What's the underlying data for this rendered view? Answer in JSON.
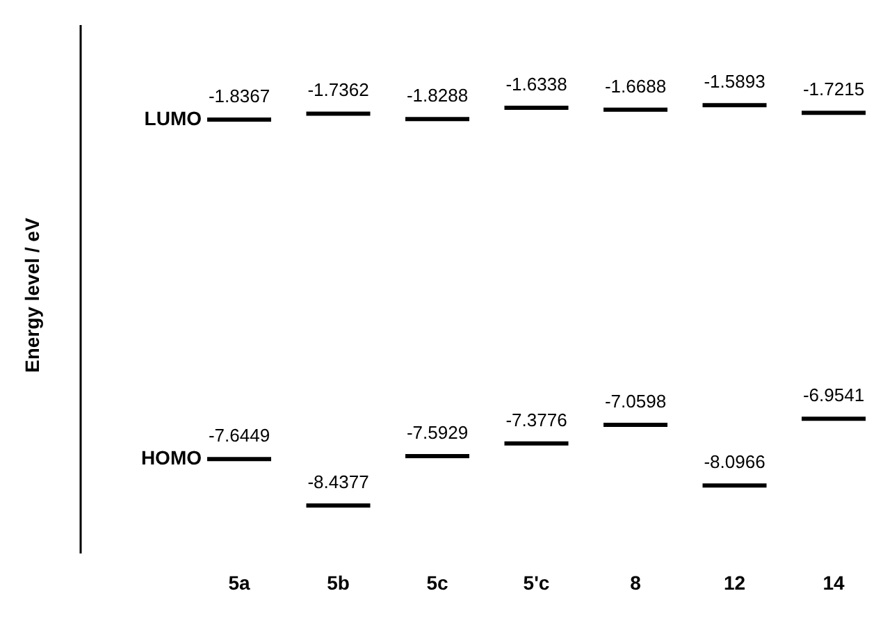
{
  "chart_data": {
    "type": "other",
    "ylabel": "Energy level  /  eV",
    "categories": [
      "5a",
      "5b",
      "5c",
      "5'c",
      "8",
      "12",
      "14"
    ],
    "series": [
      {
        "name": "LUMO",
        "color": "#000000",
        "values": [
          -1.8367,
          -1.7362,
          -1.8288,
          -1.6338,
          -1.6688,
          -1.5893,
          -1.7215
        ]
      },
      {
        "name": "HOMO",
        "color": "#000000",
        "values": [
          -7.6449,
          -8.4377,
          -7.5929,
          -7.3776,
          -7.0598,
          -8.0966,
          -6.9541
        ]
      }
    ],
    "data_labels": true
  }
}
